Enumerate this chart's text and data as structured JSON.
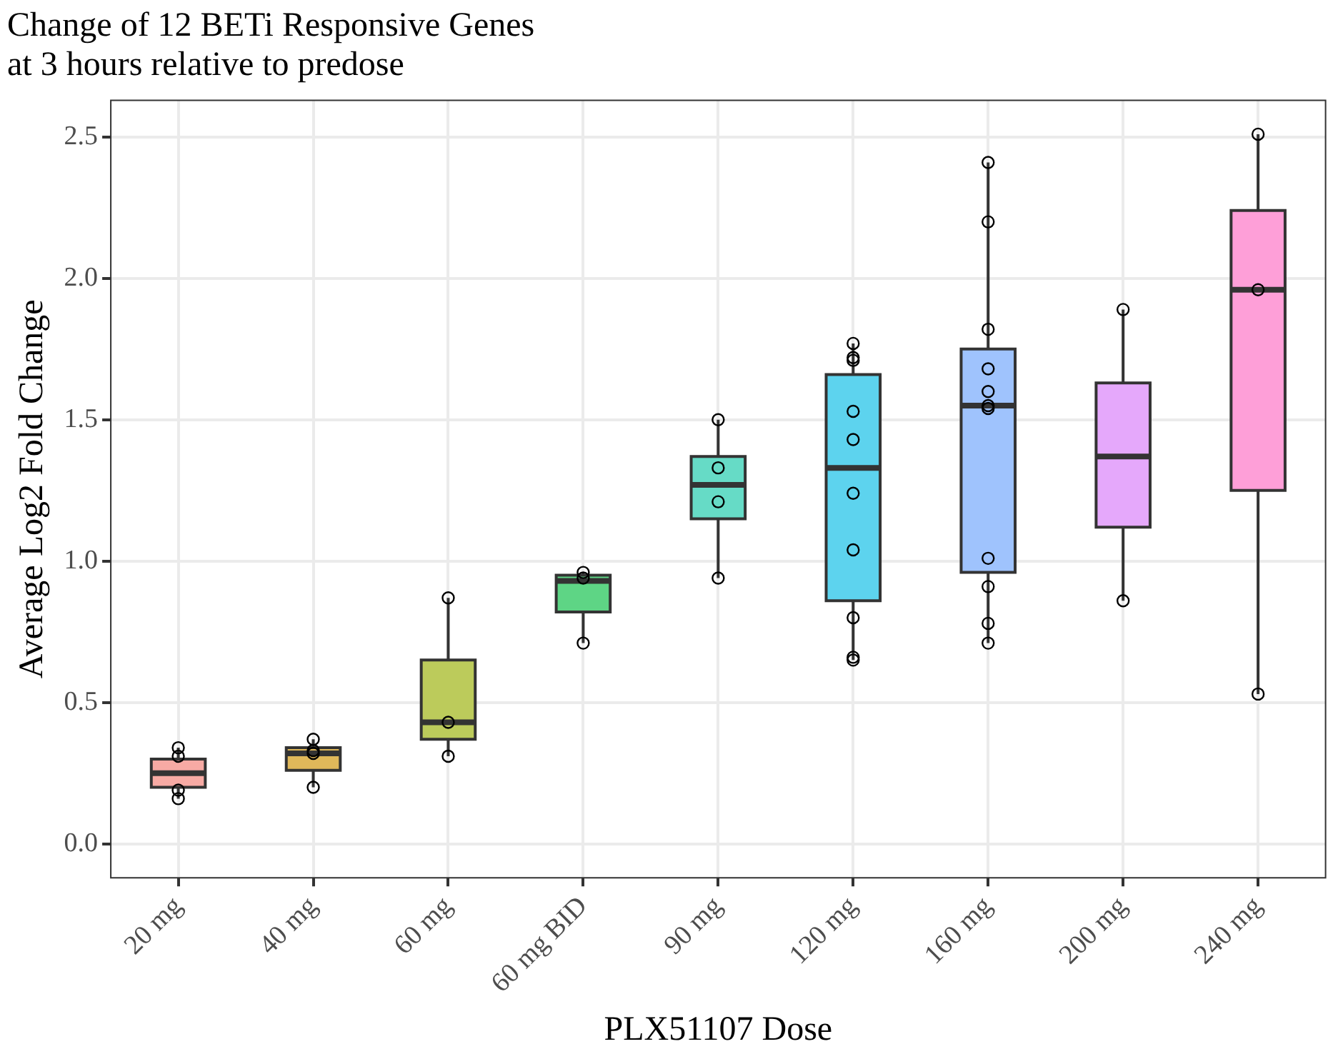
{
  "chart_data": {
    "type": "box",
    "title": "Change of 12 BETi Responsive Genes\nat 3 hours relative to predose",
    "xlabel": "PLX51107 Dose",
    "ylabel": "Average Log2 Fold Change",
    "categories": [
      "20 mg",
      "40 mg",
      "60 mg",
      "60 mg BID",
      "90 mg",
      "120 mg",
      "160 mg",
      "200 mg",
      "240 mg"
    ],
    "colors": [
      "#f7aaa4",
      "#e0b85a",
      "#bccb5b",
      "#5ed585",
      "#66dbc6",
      "#5dd3ee",
      "#9fc3fd",
      "#e5a8fb",
      "#fe9fd8"
    ],
    "boxes": [
      {
        "low": 0.16,
        "q1": 0.2,
        "median": 0.25,
        "q3": 0.3,
        "high": 0.34
      },
      {
        "low": 0.2,
        "q1": 0.26,
        "median": 0.32,
        "q3": 0.34,
        "high": 0.37
      },
      {
        "low": 0.31,
        "q1": 0.37,
        "median": 0.43,
        "q3": 0.65,
        "high": 0.87
      },
      {
        "low": 0.71,
        "q1": 0.82,
        "median": 0.93,
        "q3": 0.95,
        "high": 0.96
      },
      {
        "low": 0.94,
        "q1": 1.15,
        "median": 1.27,
        "q3": 1.37,
        "high": 1.5
      },
      {
        "low": 0.65,
        "q1": 0.86,
        "median": 1.33,
        "q3": 1.66,
        "high": 1.77
      },
      {
        "low": 0.71,
        "q1": 0.96,
        "median": 1.55,
        "q3": 1.75,
        "high": 2.41
      },
      {
        "low": 0.86,
        "q1": 1.12,
        "median": 1.37,
        "q3": 1.63,
        "high": 1.89
      },
      {
        "low": 0.53,
        "q1": 1.25,
        "median": 1.96,
        "q3": 2.24,
        "high": 2.51
      }
    ],
    "series": [
      {
        "type": "scatter",
        "color": "#000000",
        "marker": "circle",
        "x": [
          "20 mg",
          "20 mg",
          "20 mg",
          "20 mg",
          "40 mg",
          "40 mg",
          "40 mg",
          "40 mg",
          "60 mg",
          "60 mg",
          "60 mg",
          "60 mg BID",
          "60 mg BID",
          "60 mg BID",
          "90 mg",
          "90 mg",
          "90 mg",
          "90 mg",
          "120 mg",
          "120 mg",
          "120 mg",
          "120 mg",
          "120 mg",
          "120 mg",
          "120 mg",
          "120 mg",
          "120 mg",
          "120 mg",
          "160 mg",
          "160 mg",
          "160 mg",
          "160 mg",
          "160 mg",
          "160 mg",
          "160 mg",
          "160 mg",
          "160 mg",
          "160 mg",
          "160 mg",
          "200 mg",
          "200 mg",
          "240 mg",
          "240 mg",
          "240 mg"
        ],
        "values": [
          0.34,
          0.31,
          0.19,
          0.16,
          0.37,
          0.33,
          0.32,
          0.2,
          0.87,
          0.43,
          0.31,
          0.96,
          0.94,
          0.71,
          1.5,
          1.33,
          1.21,
          0.94,
          1.77,
          1.72,
          1.71,
          1.53,
          1.43,
          1.24,
          1.04,
          0.8,
          0.66,
          0.65,
          2.41,
          2.2,
          1.82,
          1.68,
          1.6,
          1.55,
          1.54,
          1.01,
          0.91,
          0.78,
          0.71,
          1.89,
          0.86,
          2.51,
          1.96,
          0.53
        ]
      }
    ],
    "ylim": [
      -0.12,
      2.63
    ],
    "yticks": [
      {
        "value": 0,
        "label": "0.0"
      },
      0.5,
      {
        "value": 1,
        "label": "1.0"
      },
      1.5,
      {
        "value": 2,
        "label": "2.0"
      },
      2.5
    ],
    "grid": true,
    "legend": false
  }
}
